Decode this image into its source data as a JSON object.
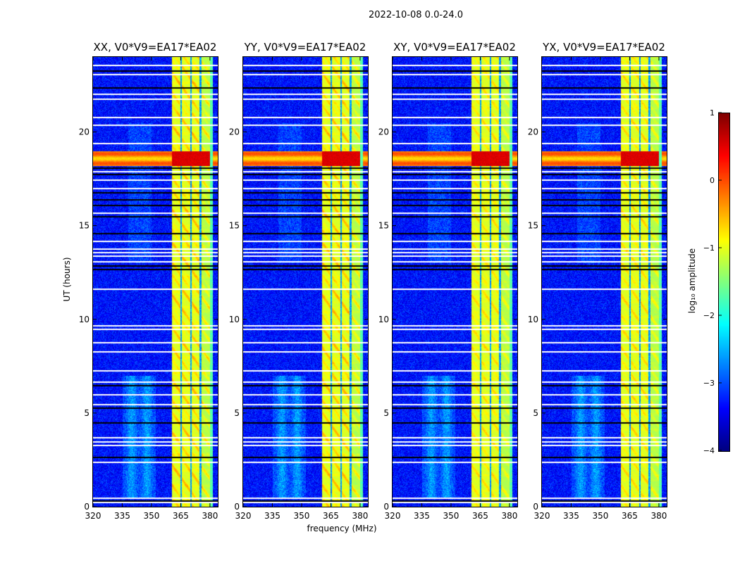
{
  "chart_data": {
    "type": "heatmap",
    "title": "2022-10-08 0.0-24.0",
    "xlabel": "frequency (MHz)",
    "ylabel": "UT (hours)",
    "xlim": [
      320,
      384
    ],
    "ylim": [
      0,
      24
    ],
    "xticks": [
      "320",
      "335",
      "350",
      "365",
      "380"
    ],
    "yticks": [
      "0",
      "5",
      "10",
      "15",
      "20"
    ],
    "panels": [
      {
        "title": "XX, V0*V9=EA17*EA02",
        "rfi_strength": 1.0
      },
      {
        "title": "YY, V0*V9=EA17*EA02",
        "rfi_strength": 1.0
      },
      {
        "title": "XY, V0*V9=EA17*EA02",
        "rfi_strength": 0.7
      },
      {
        "title": "YX, V0*V9=EA17*EA02",
        "rfi_strength": 0.75
      }
    ],
    "colorbar": {
      "label": "log₁₀ amplitude",
      "colormap": "jet",
      "range": [
        -4,
        1
      ],
      "ticks": [
        "1",
        "0",
        "−1",
        "−2",
        "−3",
        "−4"
      ]
    },
    "features": {
      "background_level": -3.3,
      "rfi_band_mhz": [
        360.4,
        380
      ],
      "rfi_subband_gaps_mhz": [
        365,
        370,
        375
      ],
      "strong_rfi_hours": [
        18.2,
        19.0
      ],
      "flagged_rows_white_hours": [
        23.6,
        23.1,
        22.05,
        21.8,
        20.8,
        20.4,
        19.4,
        17.9,
        17.45,
        17.0,
        15.7,
        14.2,
        13.8,
        13.6,
        13.4,
        13.1,
        11.65,
        9.7,
        9.5,
        8.8,
        8.3,
        7.27,
        6.7,
        6.0,
        5.5,
        3.7,
        3.5,
        3.3,
        2.4,
        0.5,
        0.25
      ],
      "flagged_rows_black_hours": [
        23.3,
        22.4,
        18.1,
        17.75,
        16.8,
        16.4,
        16.1,
        15.5,
        14.6,
        12.9,
        12.7,
        6.5,
        5.3,
        4.5,
        2.65,
        0.35
      ]
    }
  }
}
